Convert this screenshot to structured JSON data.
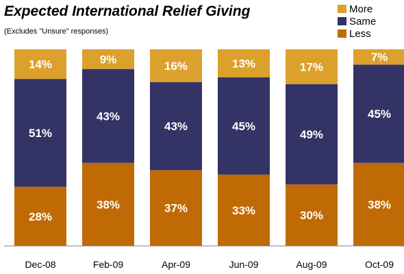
{
  "chart_data": {
    "type": "bar",
    "stacked": true,
    "percent_stacked": true,
    "title": "Expected International Relief Giving",
    "subtitle": "(Excludes \"Unsure\" responses)",
    "categories": [
      "Dec-08",
      "Feb-09",
      "Apr-09",
      "Jun-09",
      "Aug-09",
      "Oct-09"
    ],
    "series": [
      {
        "name": "Less",
        "values": [
          28,
          38,
          37,
          33,
          30,
          38
        ],
        "color": "#c06a06"
      },
      {
        "name": "Same",
        "values": [
          51,
          43,
          43,
          45,
          49,
          45
        ],
        "color": "#333366"
      },
      {
        "name": "More",
        "values": [
          14,
          9,
          16,
          13,
          17,
          7
        ],
        "color": "#dca02c"
      }
    ],
    "data_label_suffix": "%",
    "legend_position": "top-right",
    "legend_order": [
      "More",
      "Same",
      "Less"
    ],
    "grid": false
  }
}
